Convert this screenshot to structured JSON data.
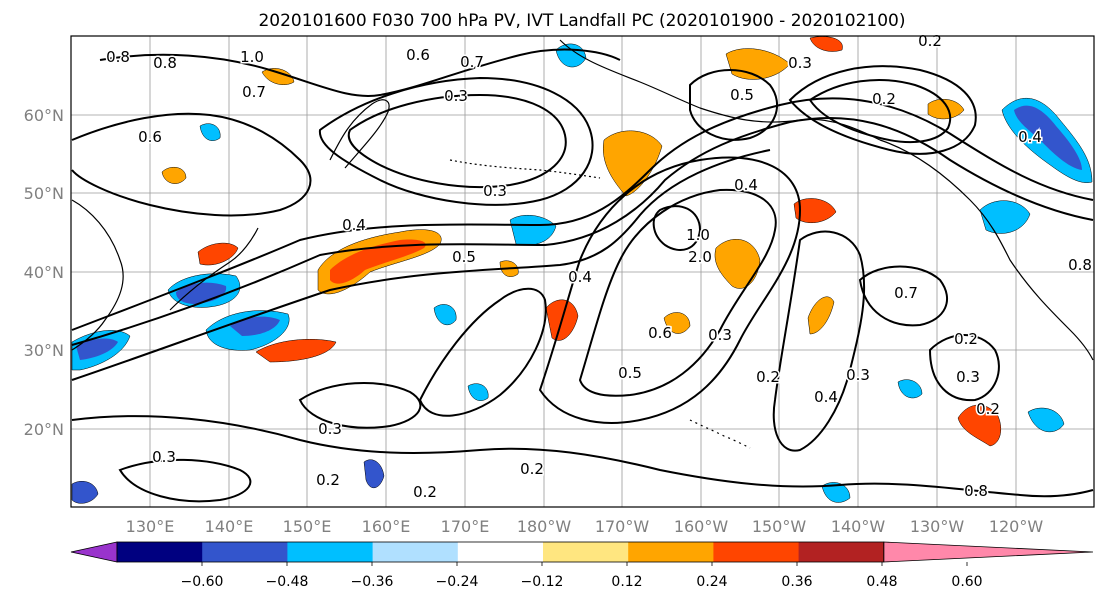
{
  "title": "2020101600 F030 700 hPa PV, IVT Landfall PC (2020101900 - 2020102100)",
  "lon_ticks": [
    "130°E",
    "140°E",
    "150°E",
    "160°E",
    "170°E",
    "180°W",
    "170°W",
    "160°W",
    "150°W",
    "140°W",
    "130°W",
    "120°W"
  ],
  "lat_ticks": [
    "20°N",
    "30°N",
    "40°N",
    "50°N",
    "60°N"
  ],
  "colorbar": {
    "tick_labels": [
      "−0.60",
      "−0.48",
      "−0.36",
      "−0.24",
      "−0.12",
      "0.12",
      "0.24",
      "0.36",
      "0.48",
      "0.60"
    ],
    "colors": [
      "#9933cc",
      "#000080",
      "#3355cc",
      "#00bfff",
      "#b0e0ff",
      "#ffffff",
      "#ffe680",
      "#ffa500",
      "#ff4500",
      "#b22222",
      "#ff88aa"
    ]
  },
  "contour_labels": [
    "0.8",
    "0.8",
    "1.0",
    "0.6",
    "0.7",
    "0.7",
    "0.6",
    "0.3",
    "0.3",
    "0.4",
    "0.5",
    "0.4",
    "0.5",
    "0.3",
    "0.4",
    "1.0",
    "2.0",
    "0.7",
    "0.2",
    "0.3",
    "0.4",
    "0.3",
    "0.2",
    "0.2",
    "0.2",
    "0.2",
    "0.3",
    "0.2",
    "0.2",
    "0.4",
    "0.5",
    "0.8",
    "0.8",
    "0.6",
    "0.3",
    "0.3",
    "0.2"
  ]
}
